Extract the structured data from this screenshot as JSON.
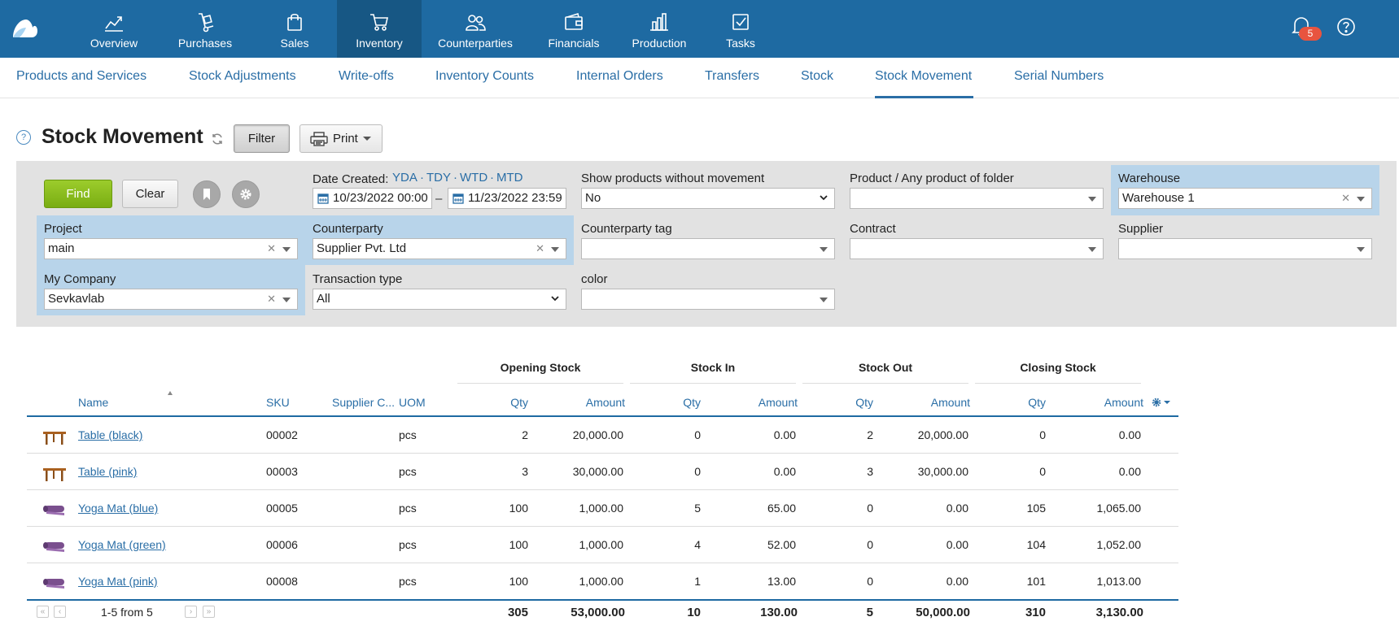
{
  "colors": {
    "nav_bg": "#1e6aa2",
    "nav_active": "#175784",
    "link": "#2a6ea6",
    "find_green": "#79ad12",
    "highlight": "#b8d4ea",
    "badge": "#e8543f"
  },
  "nav": {
    "items": [
      {
        "label": "Overview",
        "icon": "chart-line-icon"
      },
      {
        "label": "Purchases",
        "icon": "hand-truck-icon"
      },
      {
        "label": "Sales",
        "icon": "shopping-bag-icon"
      },
      {
        "label": "Inventory",
        "icon": "cart-icon"
      },
      {
        "label": "Counterparties",
        "icon": "people-icon"
      },
      {
        "label": "Financials",
        "icon": "wallet-icon"
      },
      {
        "label": "Production",
        "icon": "factory-icon"
      },
      {
        "label": "Tasks",
        "icon": "checkbox-icon"
      }
    ],
    "active": "Inventory",
    "notifications": "5"
  },
  "subnav": {
    "items": [
      "Products and Services",
      "Stock Adjustments",
      "Write-offs",
      "Inventory Counts",
      "Internal Orders",
      "Transfers",
      "Stock",
      "Stock Movement",
      "Serial Numbers"
    ],
    "active": "Stock Movement"
  },
  "page": {
    "title": "Stock Movement",
    "filter_label": "Filter",
    "print_label": "Print",
    "help": "?"
  },
  "filter": {
    "find_label": "Find",
    "clear_label": "Clear",
    "date_created_label": "Date Created:",
    "quick_ranges": [
      "YDA",
      "TDY",
      "WTD",
      "MTD"
    ],
    "date_from": "10/23/2022 00:00",
    "date_to": "11/23/2022 23:59",
    "date_dash": "–",
    "show_without_movement": {
      "label": "Show products without movement",
      "value": "No"
    },
    "product": {
      "label": "Product / Any product of folder",
      "value": ""
    },
    "warehouse": {
      "label": "Warehouse",
      "value": "Warehouse 1"
    },
    "project": {
      "label": "Project",
      "value": "main"
    },
    "counterparty": {
      "label": "Counterparty",
      "value": "Supplier Pvt. Ltd"
    },
    "counterparty_tag": {
      "label": "Counterparty tag",
      "value": ""
    },
    "contract": {
      "label": "Contract",
      "value": ""
    },
    "supplier": {
      "label": "Supplier",
      "value": ""
    },
    "my_company": {
      "label": "My Company",
      "value": "Sevkavlab"
    },
    "transaction_type": {
      "label": "Transaction type",
      "value": "All"
    },
    "color": {
      "label": "color",
      "value": ""
    }
  },
  "table": {
    "groups": [
      "Opening Stock",
      "Stock In",
      "Stock Out",
      "Closing Stock"
    ],
    "columns": {
      "name": "Name",
      "sku": "SKU",
      "supplier": "Supplier C...",
      "uom": "UOM",
      "qty": "Qty",
      "amount": "Amount"
    },
    "rows": [
      {
        "icon": "table-icon",
        "name": "Table (black)",
        "sku": "00002",
        "uom": "pcs",
        "open_qty": "2",
        "open_amt": "20,000.00",
        "in_qty": "0",
        "in_amt": "0.00",
        "out_qty": "2",
        "out_amt": "20,000.00",
        "close_qty": "0",
        "close_amt": "0.00"
      },
      {
        "icon": "table-icon",
        "name": "Table (pink)",
        "sku": "00003",
        "uom": "pcs",
        "open_qty": "3",
        "open_amt": "30,000.00",
        "in_qty": "0",
        "in_amt": "0.00",
        "out_qty": "3",
        "out_amt": "30,000.00",
        "close_qty": "0",
        "close_amt": "0.00"
      },
      {
        "icon": "yoga-mat-icon",
        "name": "Yoga Mat (blue)",
        "sku": "00005",
        "uom": "pcs",
        "open_qty": "100",
        "open_amt": "1,000.00",
        "in_qty": "5",
        "in_amt": "65.00",
        "out_qty": "0",
        "out_amt": "0.00",
        "close_qty": "105",
        "close_amt": "1,065.00"
      },
      {
        "icon": "yoga-mat-icon",
        "name": "Yoga Mat (green)",
        "sku": "00006",
        "uom": "pcs",
        "open_qty": "100",
        "open_amt": "1,000.00",
        "in_qty": "4",
        "in_amt": "52.00",
        "out_qty": "0",
        "out_amt": "0.00",
        "close_qty": "104",
        "close_amt": "1,052.00"
      },
      {
        "icon": "yoga-mat-icon",
        "name": "Yoga Mat (pink)",
        "sku": "00008",
        "uom": "pcs",
        "open_qty": "100",
        "open_amt": "1,000.00",
        "in_qty": "1",
        "in_amt": "13.00",
        "out_qty": "0",
        "out_amt": "0.00",
        "close_qty": "101",
        "close_amt": "1,013.00"
      }
    ],
    "pager": "1-5 from 5",
    "totals": {
      "open_qty": "305",
      "open_amt": "53,000.00",
      "in_qty": "10",
      "in_amt": "130.00",
      "out_qty": "5",
      "out_amt": "50,000.00",
      "close_qty": "310",
      "close_amt": "3,130.00"
    }
  }
}
